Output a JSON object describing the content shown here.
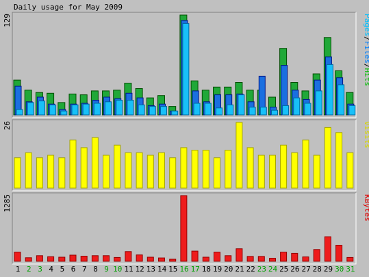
{
  "chart_data": {
    "type": "bar",
    "title": "Daily usage for May 2009",
    "days": [
      "1",
      "2",
      "3",
      "4",
      "5",
      "6",
      "7",
      "8",
      "9",
      "10",
      "11",
      "12",
      "13",
      "14",
      "15",
      "16",
      "17",
      "18",
      "19",
      "20",
      "21",
      "22",
      "23",
      "24",
      "25",
      "26",
      "27",
      "28",
      "29",
      "30",
      "31"
    ],
    "weekend_days": [
      "2",
      "3",
      "9",
      "10",
      "16",
      "17",
      "23",
      "24",
      "30",
      "31"
    ],
    "panels": [
      {
        "id": "hits",
        "max_label": "129",
        "ymax": 129,
        "legend": [
          {
            "text": "Pages",
            "color": "#00c0ff"
          },
          {
            "text": "/",
            "color": "#000000"
          },
          {
            "text": "Files",
            "color": "#0080ff"
          },
          {
            "text": "/",
            "color": "#000000"
          },
          {
            "text": "Hits",
            "color": "#00c000"
          }
        ],
        "series": [
          {
            "name": "Hits",
            "color": "#20a838",
            "values": [
              45,
              32,
              29,
              28,
              16,
              27,
              26,
              31,
              31,
              32,
              41,
              34,
              22,
              25,
              11,
              129,
              44,
              32,
              36,
              36,
              42,
              32,
              32,
              23,
              86,
              42,
              31,
              53,
              100,
              57,
              29
            ]
          },
          {
            "name": "Files",
            "color": "#1a6fe0",
            "values": [
              37,
              17,
              23,
              14,
              7,
              14,
              15,
              19,
              23,
              21,
              28,
              22,
              12,
              14,
              5,
              122,
              31,
              17,
              26,
              26,
              27,
              17,
              50,
              10,
              64,
              32,
              20,
              45,
              75,
              48,
              14
            ]
          },
          {
            "name": "Pages",
            "color": "#18c0f8",
            "values": [
              7,
              16,
              18,
              13,
              5,
              13,
              14,
              15,
              17,
              19,
              19,
              13,
              11,
              11,
              5,
              118,
              15,
              15,
              9,
              13,
              26,
              10,
              10,
              6,
              12,
              22,
              15,
              31,
              65,
              39,
              12
            ]
          }
        ]
      },
      {
        "id": "visits",
        "max_label": "26",
        "ymax": 26,
        "legend": [
          {
            "text": "Visits",
            "color": "#d8d800"
          }
        ],
        "series": [
          {
            "name": "Visits",
            "color": "#ffff00",
            "values": [
              12,
              14,
              12,
              13,
              12,
              19,
              16,
              20,
              13,
              17,
              14,
              14,
              13,
              14,
              12,
              16,
              15,
              15,
              12,
              15,
              26,
              16,
              13,
              13,
              17,
              14,
              19,
              13,
              24,
              22,
              14
            ]
          }
        ]
      },
      {
        "id": "kbytes",
        "max_label": "1285",
        "ymax": 1285,
        "legend": [
          {
            "text": "KBytes",
            "color": "#e00000"
          }
        ],
        "series": [
          {
            "name": "KBytes",
            "color": "#ee1c1c",
            "values": [
              180,
              70,
              110,
              90,
              80,
              120,
              100,
              110,
              110,
              75,
              190,
              125,
              80,
              65,
              40,
              1285,
              200,
              80,
              180,
              110,
              245,
              95,
              95,
              60,
              180,
              155,
              85,
              230,
              480,
              315,
              75
            ]
          }
        ]
      }
    ]
  }
}
